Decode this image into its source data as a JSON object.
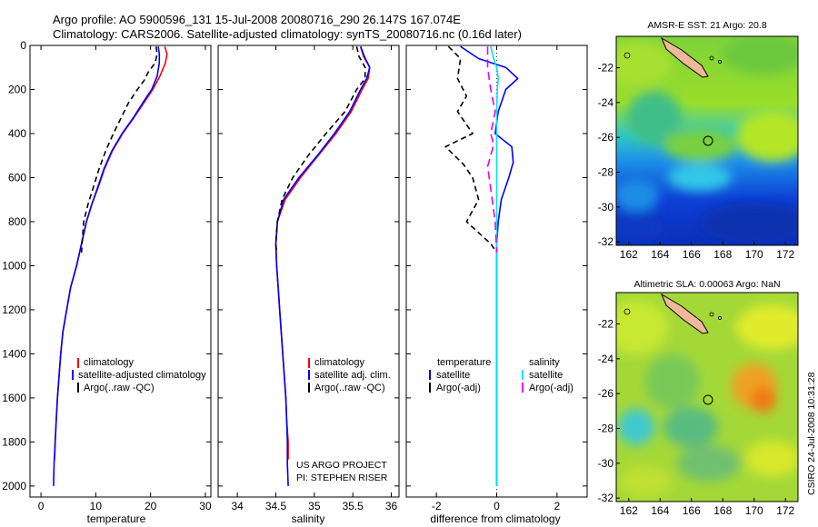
{
  "header": {
    "title_line1": "Argo profile: AO 5900596_131 15-Jul-2008 20080716_290 26.147S 167.074E",
    "title_line2": "Climatology: CARS2006. Satellite-adjusted climatology: synTS_20080716.nc (0.16d later)"
  },
  "credits": {
    "project": "US ARGO PROJECT",
    "pi": "PI: STEPHEN RISER",
    "stamp": "CSIRO 24-Jul-2008 10:31:28"
  },
  "colors": {
    "climatology": "#ff0000",
    "satellite": "#0000ff",
    "argo": "#000000",
    "sat_salinity": "#00e5ee",
    "argo_salinity": "#ee00ee"
  },
  "chart_data": [
    {
      "type": "line",
      "id": "temperature",
      "xlabel": "temperature",
      "xlim": [
        -2,
        31
      ],
      "xticks": [
        0,
        10,
        20,
        30
      ],
      "ylim": [
        2050,
        0
      ],
      "yticks": [
        0,
        200,
        400,
        600,
        800,
        1000,
        1200,
        1400,
        1600,
        1800,
        2000
      ],
      "legend": [
        "climatology",
        "satellite-adjusted climatology",
        "Argo(..raw -QC)"
      ],
      "series": [
        {
          "name": "climatology",
          "color": "#ff0000",
          "dash": "",
          "points": [
            [
              22.6,
              5
            ],
            [
              23.0,
              40
            ],
            [
              22.7,
              80
            ],
            [
              21.7,
              140
            ],
            [
              20.4,
              200
            ],
            [
              18.8,
              260
            ],
            [
              16.9,
              330
            ],
            [
              14.9,
              400
            ],
            [
              13.0,
              480
            ],
            [
              11.6,
              560
            ],
            [
              10.5,
              640
            ],
            [
              9.3,
              720
            ],
            [
              8.3,
              800
            ],
            [
              7.4,
              900
            ],
            [
              6.5,
              1000
            ],
            [
              5.4,
              1100
            ],
            [
              4.7,
              1200
            ],
            [
              4.0,
              1300
            ],
            [
              3.6,
              1400
            ],
            [
              3.3,
              1500
            ],
            [
              3.0,
              1600
            ],
            [
              2.8,
              1700
            ],
            [
              2.6,
              1800
            ],
            [
              2.5,
              1880
            ]
          ]
        },
        {
          "name": "satellite-adjusted climatology",
          "color": "#0000ff",
          "dash": "",
          "points": [
            [
              21.4,
              5
            ],
            [
              21.6,
              40
            ],
            [
              21.6,
              80
            ],
            [
              21.2,
              140
            ],
            [
              20.2,
              200
            ],
            [
              18.6,
              260
            ],
            [
              16.8,
              330
            ],
            [
              14.8,
              400
            ],
            [
              12.9,
              480
            ],
            [
              11.5,
              560
            ],
            [
              10.4,
              640
            ],
            [
              9.3,
              720
            ],
            [
              8.3,
              800
            ],
            [
              7.4,
              900
            ],
            [
              6.5,
              1000
            ],
            [
              5.4,
              1100
            ],
            [
              4.7,
              1200
            ],
            [
              4.0,
              1300
            ],
            [
              3.6,
              1400
            ],
            [
              3.3,
              1500
            ],
            [
              3.0,
              1600
            ],
            [
              2.8,
              1700
            ],
            [
              2.6,
              1800
            ],
            [
              2.4,
              1900
            ],
            [
              2.3,
              2000
            ]
          ]
        },
        {
          "name": "Argo(..raw -QC)",
          "color": "#000000",
          "dash": "6,4",
          "points": [
            [
              21.0,
              5
            ],
            [
              21.2,
              40
            ],
            [
              20.8,
              80
            ],
            [
              19.6,
              120
            ],
            [
              18.8,
              160
            ],
            [
              17.6,
              200
            ],
            [
              16.0,
              260
            ],
            [
              14.6,
              330
            ],
            [
              13.2,
              400
            ],
            [
              11.8,
              480
            ],
            [
              10.6,
              560
            ],
            [
              9.6,
              640
            ],
            [
              8.6,
              720
            ],
            [
              7.8,
              800
            ],
            [
              7.5,
              900
            ],
            [
              7.4,
              940
            ]
          ]
        }
      ]
    },
    {
      "type": "line",
      "id": "salinity",
      "xlabel": "salinity",
      "xlim": [
        33.75,
        36.1
      ],
      "xticks": [
        34,
        34.5,
        35,
        35.5,
        36
      ],
      "ylim": [
        2050,
        0
      ],
      "yticks": [
        0,
        200,
        400,
        600,
        800,
        1000,
        1200,
        1400,
        1600,
        1800,
        2000
      ],
      "legend": [
        "climatology",
        "satellite adj. clim.",
        "Argo(..raw -QC)"
      ],
      "series": [
        {
          "name": "climatology",
          "color": "#ff0000",
          "dash": "",
          "points": [
            [
              35.6,
              5
            ],
            [
              35.64,
              50
            ],
            [
              35.72,
              100
            ],
            [
              35.7,
              150
            ],
            [
              35.62,
              200
            ],
            [
              35.48,
              300
            ],
            [
              35.28,
              400
            ],
            [
              35.05,
              500
            ],
            [
              34.82,
              600
            ],
            [
              34.62,
              700
            ],
            [
              34.52,
              800
            ],
            [
              34.5,
              900
            ],
            [
              34.51,
              1000
            ],
            [
              34.53,
              1100
            ],
            [
              34.55,
              1200
            ],
            [
              34.57,
              1300
            ],
            [
              34.59,
              1400
            ],
            [
              34.61,
              1500
            ],
            [
              34.63,
              1600
            ],
            [
              34.64,
              1700
            ],
            [
              34.66,
              1800
            ],
            [
              34.66,
              1880
            ]
          ]
        },
        {
          "name": "satellite adj. clim.",
          "color": "#0000ff",
          "dash": "",
          "points": [
            [
              35.6,
              5
            ],
            [
              35.65,
              50
            ],
            [
              35.72,
              100
            ],
            [
              35.68,
              150
            ],
            [
              35.6,
              200
            ],
            [
              35.46,
              300
            ],
            [
              35.26,
              400
            ],
            [
              35.04,
              500
            ],
            [
              34.8,
              600
            ],
            [
              34.6,
              700
            ],
            [
              34.52,
              800
            ],
            [
              34.5,
              900
            ],
            [
              34.51,
              1000
            ],
            [
              34.53,
              1100
            ],
            [
              34.55,
              1200
            ],
            [
              34.57,
              1300
            ],
            [
              34.59,
              1400
            ],
            [
              34.61,
              1500
            ],
            [
              34.63,
              1600
            ],
            [
              34.64,
              1700
            ],
            [
              34.65,
              1800
            ],
            [
              34.65,
              1900
            ],
            [
              34.66,
              2000
            ]
          ]
        },
        {
          "name": "Argo(..raw -QC)",
          "color": "#000000",
          "dash": "6,4",
          "points": [
            [
              35.55,
              5
            ],
            [
              35.58,
              50
            ],
            [
              35.66,
              100
            ],
            [
              35.66,
              150
            ],
            [
              35.55,
              200
            ],
            [
              35.4,
              300
            ],
            [
              35.15,
              400
            ],
            [
              34.92,
              500
            ],
            [
              34.72,
              600
            ],
            [
              34.58,
              700
            ],
            [
              34.52,
              800
            ],
            [
              34.5,
              900
            ],
            [
              34.51,
              940
            ]
          ]
        }
      ]
    },
    {
      "type": "line",
      "id": "difference",
      "xlabel": "difference from climatology",
      "xlim": [
        -3,
        3
      ],
      "xticks": [
        -2,
        0,
        2
      ],
      "ylim": [
        2050,
        0
      ],
      "yticks": [
        0,
        200,
        400,
        600,
        800,
        1000,
        1200,
        1400,
        1600,
        1800,
        2000
      ],
      "legend_temperature": {
        "heading": "temperature",
        "items": [
          "satellite",
          "Argo(-adj)"
        ]
      },
      "legend_salinity": {
        "heading": "salinity",
        "items": [
          "satellite",
          "Argo(-adj)"
        ]
      },
      "series": [
        {
          "name": "temperature satellite",
          "color": "#0000ff",
          "dash": "",
          "points": [
            [
              -1.2,
              5
            ],
            [
              -0.6,
              60
            ],
            [
              0.3,
              100
            ],
            [
              0.7,
              150
            ],
            [
              0.3,
              200
            ],
            [
              0.05,
              300
            ],
            [
              -0.05,
              400
            ],
            [
              0.5,
              460
            ],
            [
              0.55,
              530
            ],
            [
              0.4,
              600
            ],
            [
              0.15,
              700
            ],
            [
              0.05,
              800
            ],
            [
              0.0,
              900
            ],
            [
              0.0,
              1000
            ],
            [
              0.0,
              1200
            ],
            [
              0.0,
              1500
            ],
            [
              0.0,
              1800
            ],
            [
              0.0,
              2000
            ]
          ]
        },
        {
          "name": "temperature Argo(-adj)",
          "color": "#000000",
          "dash": "6,4",
          "points": [
            [
              -1.6,
              5
            ],
            [
              -1.2,
              60
            ],
            [
              -1.3,
              150
            ],
            [
              -1.0,
              230
            ],
            [
              -1.3,
              300
            ],
            [
              -0.8,
              400
            ],
            [
              -1.7,
              460
            ],
            [
              -1.1,
              540
            ],
            [
              -0.8,
              600
            ],
            [
              -0.6,
              700
            ],
            [
              -1.0,
              800
            ],
            [
              -0.6,
              850
            ],
            [
              -0.2,
              900
            ],
            [
              0.0,
              940
            ]
          ]
        },
        {
          "name": "salinity satellite",
          "color": "#00e5ee",
          "dash": "",
          "points": [
            [
              -0.2,
              5
            ],
            [
              -0.1,
              60
            ],
            [
              0.0,
              100
            ],
            [
              0.05,
              150
            ],
            [
              0.02,
              200
            ],
            [
              0.0,
              300
            ],
            [
              0.0,
              500
            ],
            [
              0.0,
              700
            ],
            [
              0.0,
              1000
            ],
            [
              0.0,
              1500
            ],
            [
              0.0,
              2000
            ]
          ]
        },
        {
          "name": "salinity Argo(-adj)",
          "color": "#ee00ee",
          "dash": "9,5",
          "points": [
            [
              -0.3,
              5
            ],
            [
              -0.3,
              100
            ],
            [
              -0.2,
              200
            ],
            [
              -0.05,
              300
            ],
            [
              -0.2,
              400
            ],
            [
              -0.1,
              450
            ],
            [
              -0.3,
              550
            ],
            [
              -0.2,
              650
            ],
            [
              -0.05,
              800
            ],
            [
              0.0,
              940
            ]
          ]
        }
      ]
    },
    {
      "type": "heatmap",
      "id": "sst_map",
      "title": "AMSR-E SST: 21 Argo: 20.8",
      "xticks": [
        162,
        164,
        166,
        168,
        170,
        172
      ],
      "yticks": [
        -22,
        -24,
        -26,
        -28,
        -30,
        -32
      ],
      "xlim": [
        161.2,
        172.8
      ],
      "ylim": [
        -32.2,
        -20.2
      ],
      "marker": {
        "lon": 167.074,
        "lat": -26.147
      }
    },
    {
      "type": "heatmap",
      "id": "sla_map",
      "title": "Altimetric SLA: 0.00063 Argo: NaN",
      "xticks": [
        162,
        164,
        166,
        168,
        170,
        172
      ],
      "yticks": [
        -22,
        -24,
        -26,
        -28,
        -30,
        -32
      ],
      "xlim": [
        161.2,
        172.8
      ],
      "ylim": [
        -32.2,
        -20.2
      ],
      "marker": {
        "lon": 167.074,
        "lat": -26.147
      }
    }
  ]
}
